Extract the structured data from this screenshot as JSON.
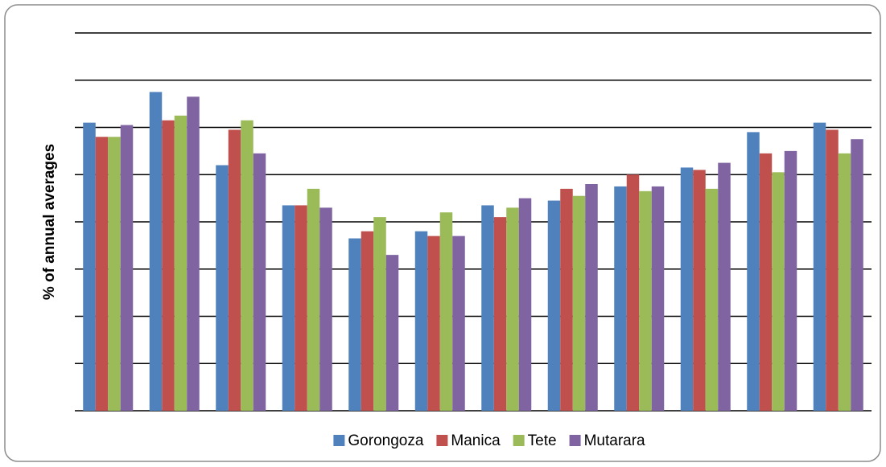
{
  "chart_data": {
    "type": "bar",
    "y_label": "% of annual averages",
    "categories": [
      null,
      null,
      null,
      null,
      null,
      null,
      null,
      null,
      null,
      null,
      null,
      null
    ],
    "series": [
      {
        "name": "Gorongoza",
        "color": "#4f81bd",
        "values": [
          122,
          135,
          104,
          87,
          73,
          76,
          87,
          89,
          95,
          103,
          118,
          122
        ]
      },
      {
        "name": "Manica",
        "color": "#c0504d",
        "values": [
          116,
          123,
          119,
          87,
          76,
          74,
          82,
          94,
          100,
          102,
          109,
          119
        ]
      },
      {
        "name": "Tete",
        "color": "#9bbb59",
        "values": [
          116,
          125,
          123,
          94,
          82,
          84,
          86,
          91,
          93,
          94,
          101,
          109
        ]
      },
      {
        "name": "Mutarara",
        "color": "#8064a2",
        "values": [
          121,
          133,
          109,
          86,
          66,
          74,
          90,
          96,
          95,
          105,
          110,
          115
        ]
      }
    ],
    "ylim": [
      0,
      160
    ],
    "yticks": [
      0,
      20,
      40,
      60,
      80,
      100,
      120,
      140,
      160
    ],
    "grid": true,
    "legend": "bottom"
  }
}
